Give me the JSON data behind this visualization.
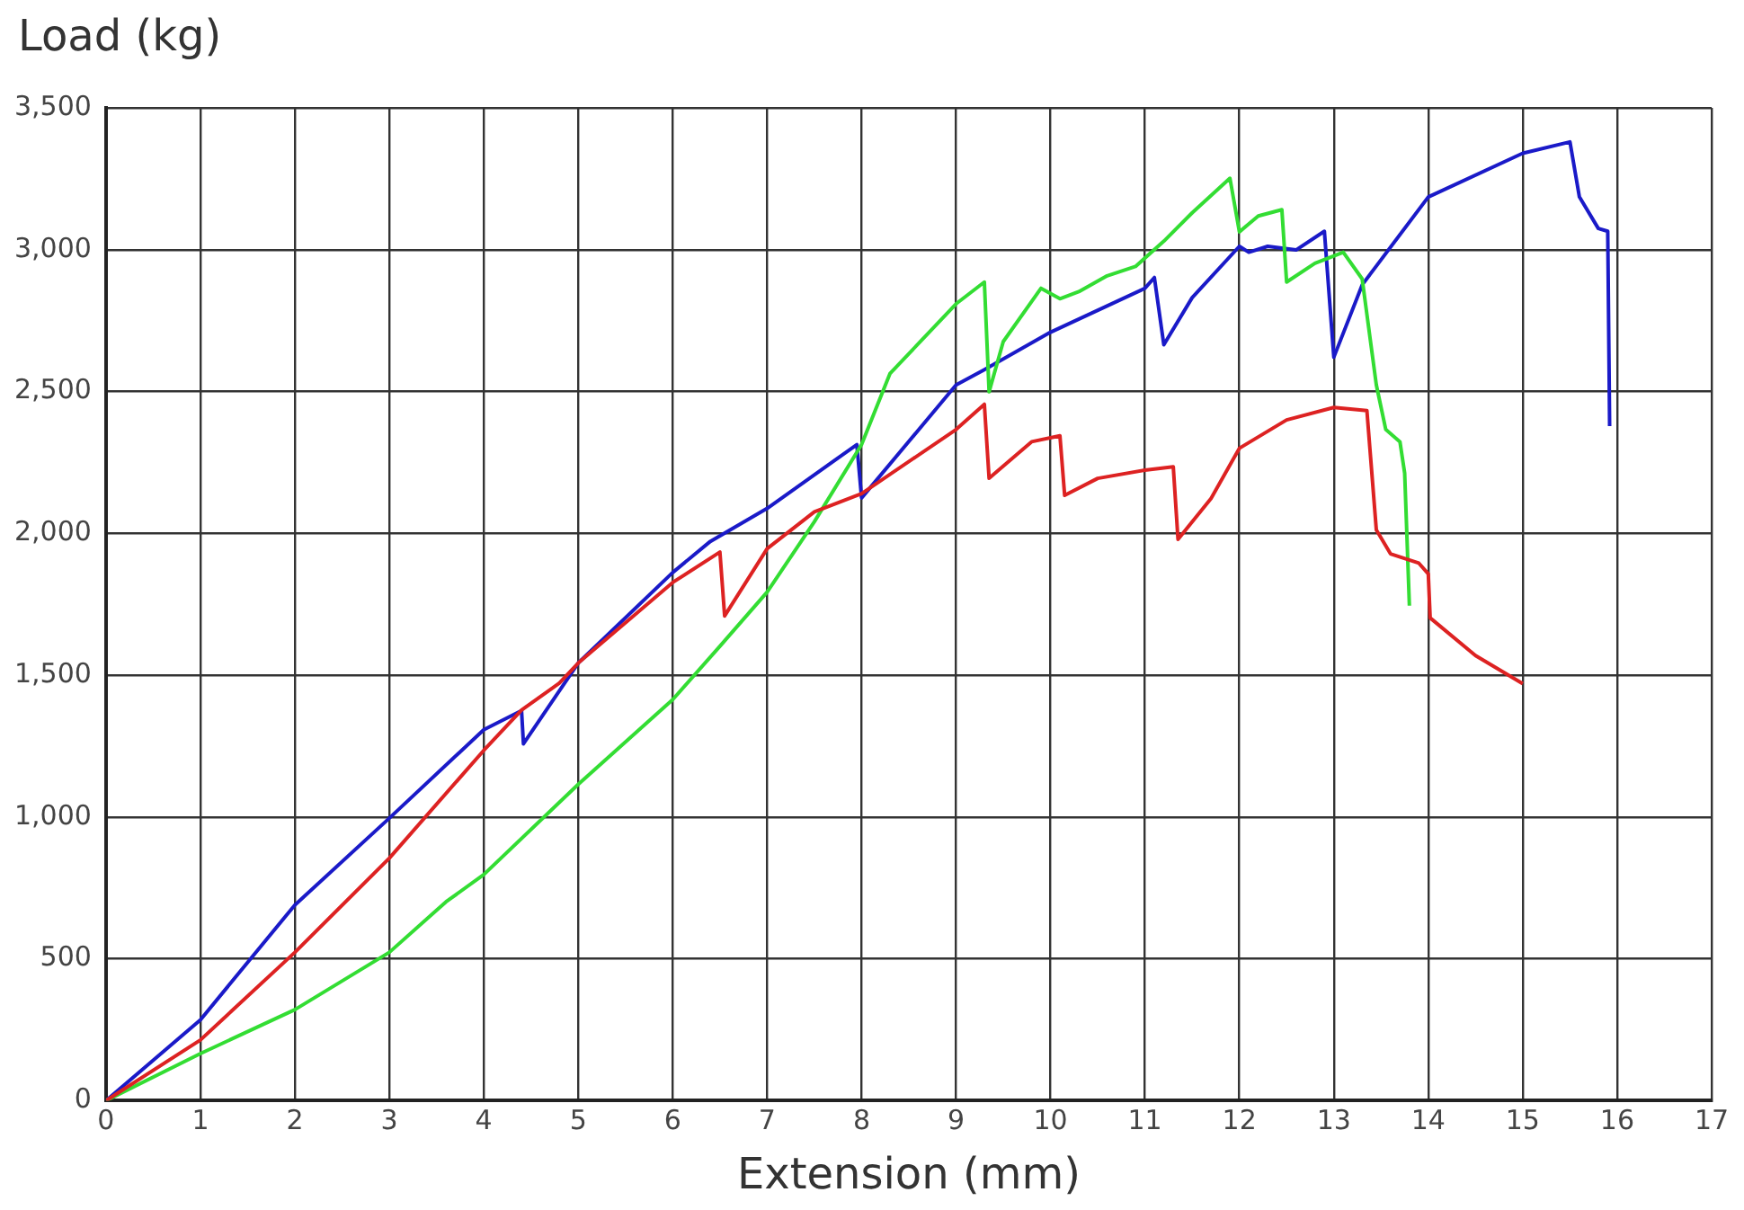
{
  "chart_data": {
    "type": "line",
    "xlabel": "Extension (mm)",
    "ylabel": "Load (kg)",
    "xlim": [
      0,
      17
    ],
    "ylim": [
      0,
      3500
    ],
    "xticks": [
      0,
      1,
      2,
      3,
      4,
      5,
      6,
      7,
      8,
      9,
      10,
      11,
      12,
      13,
      14,
      15,
      16,
      17
    ],
    "yticks": [
      0,
      {
        "value": 500,
        "label": "500"
      },
      {
        "value": 1000,
        "label": "1,000"
      },
      {
        "value": 1500,
        "label": "1,500"
      },
      {
        "value": 2000,
        "label": "2,000"
      },
      {
        "value": 2500,
        "label": "2,500"
      },
      {
        "value": 3000,
        "label": "3,000"
      },
      {
        "value": 3500,
        "label": "3,500"
      }
    ],
    "grid": true,
    "legend": false,
    "marker": "none",
    "line_style": "solid",
    "series": [
      {
        "color": "#dd2222",
        "x": [
          0,
          1,
          2,
          3,
          4,
          4.4,
          4.8,
          5,
          6,
          6.5,
          6.55,
          7,
          7.5,
          8,
          9,
          9.3,
          9.35,
          9.8,
          10.1,
          10.15,
          10.5,
          11,
          11.3,
          11.35,
          11.7,
          12,
          12.5,
          13,
          13.35,
          13.45,
          13.6,
          13.9,
          14,
          14.02,
          14.5,
          15
        ],
        "values": [
          0,
          214,
          523,
          855,
          1235,
          1377,
          1472,
          1543,
          1827,
          1934,
          1709,
          1946,
          2076,
          2140,
          2366,
          2455,
          2194,
          2323,
          2344,
          2134,
          2194,
          2223,
          2235,
          1979,
          2123,
          2300,
          2400,
          2444,
          2433,
          2012,
          1928,
          1895,
          1857,
          1702,
          1569,
          1470
        ]
      },
      {
        "color": "#33dd33",
        "x": [
          0,
          1,
          2,
          3,
          3.6,
          4,
          5,
          6,
          6.5,
          7,
          7.5,
          8,
          8.3,
          9,
          9.3,
          9.35,
          9.5,
          9.9,
          10.1,
          10.3,
          10.6,
          10.9,
          11.2,
          11.5,
          11.9,
          12,
          12.2,
          12.45,
          12.5,
          12.8,
          13.1,
          13.3,
          13.45,
          13.55,
          13.7,
          13.75,
          13.8
        ],
        "values": [
          0,
          166,
          321,
          523,
          701,
          797,
          1115,
          1414,
          1602,
          1793,
          2041,
          2313,
          2563,
          2809,
          2886,
          2499,
          2676,
          2864,
          2827,
          2852,
          2908,
          2941,
          3030,
          3130,
          3252,
          3063,
          3119,
          3141,
          2886,
          2952,
          2991,
          2897,
          2523,
          2366,
          2323,
          2212,
          1745
        ]
      },
      {
        "color": "#1a1ac8",
        "x": [
          0,
          1,
          2,
          3,
          4,
          4.4,
          4.42,
          5,
          6,
          6.4,
          7,
          7.95,
          8,
          9,
          9.3,
          10,
          11,
          11.1,
          11.2,
          11.5,
          12,
          12.1,
          12.3,
          12.6,
          12.9,
          13,
          13.3,
          14,
          15,
          15.5,
          15.6,
          15.8,
          15.9,
          15.92
        ],
        "values": [
          0,
          285,
          690,
          996,
          1308,
          1375,
          1258,
          1543,
          1862,
          1972,
          2088,
          2313,
          2125,
          2523,
          2577,
          2709,
          2864,
          2902,
          2665,
          2831,
          3012,
          2991,
          3012,
          2999,
          3065,
          2621,
          2876,
          3186,
          3340,
          3380,
          3186,
          3075,
          3065,
          2378
        ]
      }
    ]
  }
}
